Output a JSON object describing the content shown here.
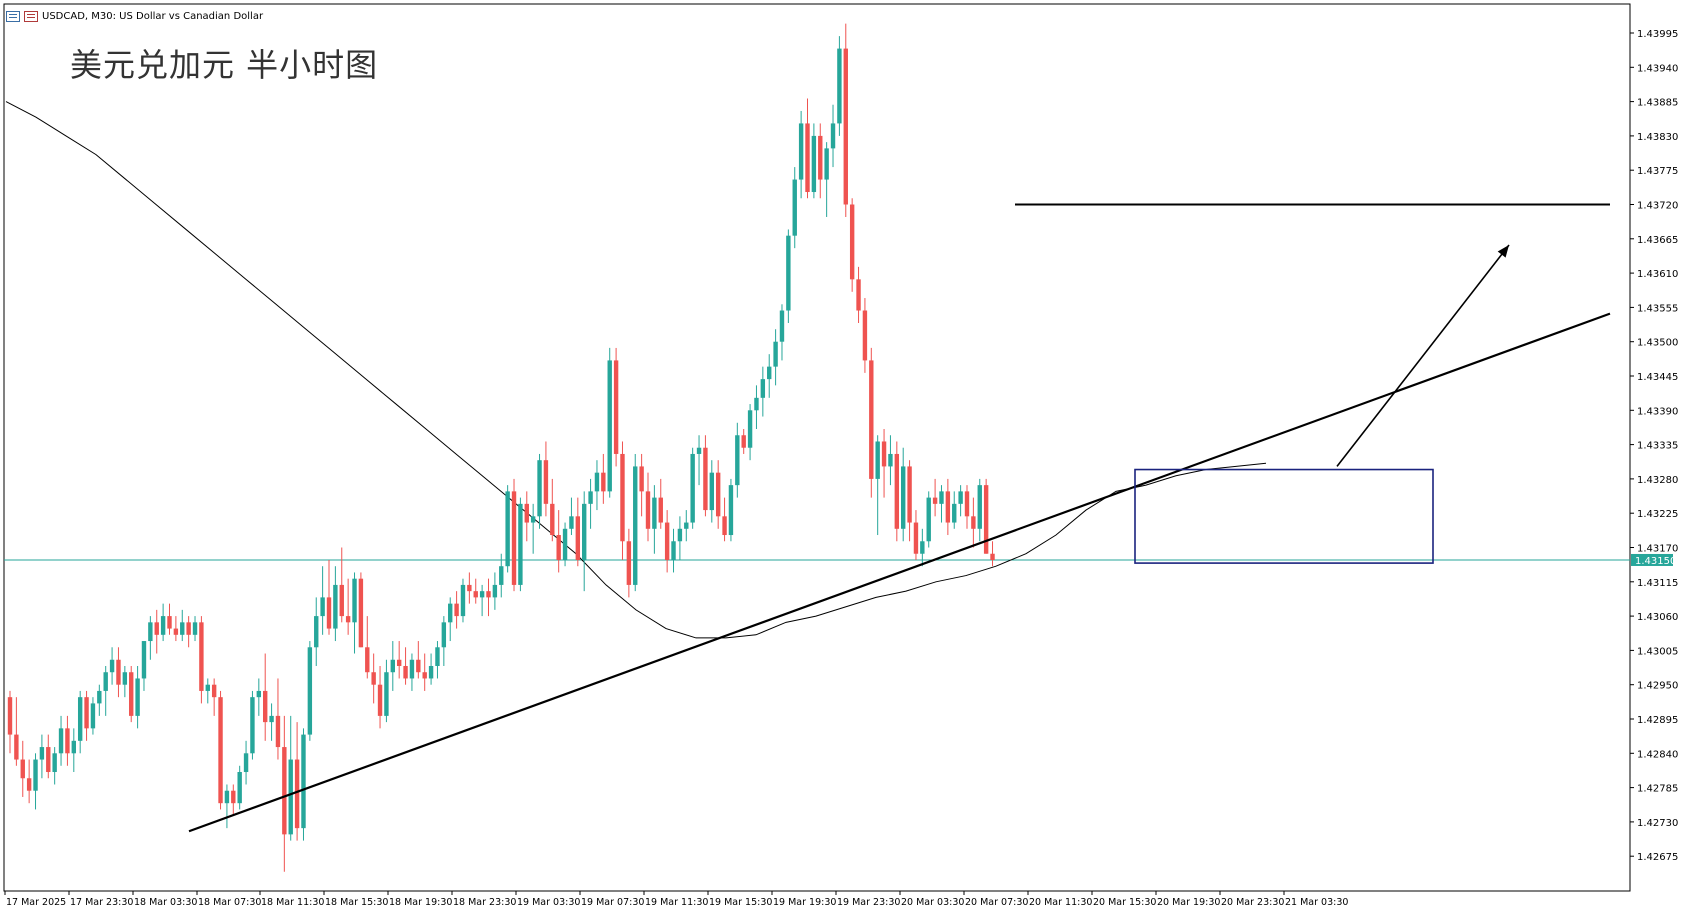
{
  "header": {
    "symbol_info": "USDCAD, M30:  US Dollar vs Canadian Dollar",
    "icon_1": "chart-window-icon",
    "icon_2": "chart-settings-icon"
  },
  "overlay_title": "美元兑加元 半小时图",
  "colors": {
    "bull": "#26a69a",
    "bear": "#ef5350",
    "current_price_line": "#26a69a",
    "box": "#1a237e",
    "line": "#000000"
  },
  "chart_data": {
    "type": "candlestick",
    "title": "",
    "symbol": "USDCAD",
    "timeframe": "M30",
    "current_price": "1.43150",
    "ylim": [
      1.4262,
      1.4405
    ],
    "y_ticks": [
      "1.43995",
      "1.43940",
      "1.43885",
      "1.43830",
      "1.43775",
      "1.43720",
      "1.43665",
      "1.43610",
      "1.43555",
      "1.43500",
      "1.43445",
      "1.43390",
      "1.43335",
      "1.43280",
      "1.43225",
      "1.43170",
      "1.43115",
      "1.43060",
      "1.43005",
      "1.42950",
      "1.42895",
      "1.42840",
      "1.42785",
      "1.42730",
      "1.42675"
    ],
    "x_ticks": [
      "17 Mar 2025",
      "17 Mar 23:30",
      "18 Mar 03:30",
      "18 Mar 07:30",
      "18 Mar 11:30",
      "18 Mar 15:30",
      "18 Mar 19:30",
      "18 Mar 23:30",
      "19 Mar 03:30",
      "19 Mar 07:30",
      "19 Mar 11:30",
      "19 Mar 15:30",
      "19 Mar 19:30",
      "19 Mar 23:30",
      "20 Mar 03:30",
      "20 Mar 07:30",
      "20 Mar 11:30",
      "20 Mar 15:30",
      "20 Mar 19:30",
      "20 Mar 23:30",
      "21 Mar 03:30"
    ],
    "candles": [
      [
        1.4293,
        1.4294,
        1.4284,
        1.4287
      ],
      [
        1.4287,
        1.4293,
        1.4282,
        1.4283
      ],
      [
        1.4283,
        1.4286,
        1.4277,
        1.428
      ],
      [
        1.428,
        1.4283,
        1.4276,
        1.4278
      ],
      [
        1.4278,
        1.4284,
        1.4275,
        1.4283
      ],
      [
        1.4283,
        1.4287,
        1.428,
        1.4285
      ],
      [
        1.4285,
        1.4287,
        1.428,
        1.4281
      ],
      [
        1.4281,
        1.4285,
        1.4279,
        1.4284
      ],
      [
        1.4284,
        1.429,
        1.4282,
        1.4288
      ],
      [
        1.4288,
        1.429,
        1.4282,
        1.4284
      ],
      [
        1.4284,
        1.4288,
        1.4281,
        1.4286
      ],
      [
        1.4286,
        1.4294,
        1.4284,
        1.4293
      ],
      [
        1.4293,
        1.4294,
        1.4286,
        1.4288
      ],
      [
        1.4288,
        1.4293,
        1.4287,
        1.4292
      ],
      [
        1.4292,
        1.4295,
        1.429,
        1.4294
      ],
      [
        1.4294,
        1.4298,
        1.429,
        1.4297
      ],
      [
        1.4297,
        1.4301,
        1.4295,
        1.4299
      ],
      [
        1.4299,
        1.4301,
        1.4293,
        1.4295
      ],
      [
        1.4295,
        1.4298,
        1.4293,
        1.4297
      ],
      [
        1.4297,
        1.4298,
        1.4289,
        1.429
      ],
      [
        1.429,
        1.4298,
        1.4288,
        1.4296
      ],
      [
        1.4296,
        1.4302,
        1.4294,
        1.4302
      ],
      [
        1.4302,
        1.4306,
        1.4299,
        1.4305
      ],
      [
        1.4305,
        1.4307,
        1.43,
        1.4303
      ],
      [
        1.4303,
        1.4308,
        1.4302,
        1.4306
      ],
      [
        1.4306,
        1.4308,
        1.4303,
        1.4304
      ],
      [
        1.4304,
        1.4306,
        1.4302,
        1.4303
      ],
      [
        1.4303,
        1.4307,
        1.4302,
        1.4305
      ],
      [
        1.4305,
        1.4306,
        1.4301,
        1.4303
      ],
      [
        1.4303,
        1.4306,
        1.4302,
        1.4305
      ],
      [
        1.4305,
        1.4306,
        1.4292,
        1.4294
      ],
      [
        1.4294,
        1.4296,
        1.4292,
        1.4295
      ],
      [
        1.4295,
        1.4296,
        1.429,
        1.4293
      ],
      [
        1.4293,
        1.4294,
        1.4275,
        1.4276
      ],
      [
        1.4276,
        1.4279,
        1.4272,
        1.4278
      ],
      [
        1.4278,
        1.4279,
        1.4274,
        1.4276
      ],
      [
        1.4276,
        1.4282,
        1.4275,
        1.4281
      ],
      [
        1.4281,
        1.4286,
        1.4279,
        1.4284
      ],
      [
        1.4284,
        1.4294,
        1.4283,
        1.4293
      ],
      [
        1.4293,
        1.4296,
        1.429,
        1.4294
      ],
      [
        1.4294,
        1.43,
        1.4286,
        1.4289
      ],
      [
        1.4289,
        1.4292,
        1.4286,
        1.429
      ],
      [
        1.429,
        1.4296,
        1.4283,
        1.4285
      ],
      [
        1.4285,
        1.429,
        1.4265,
        1.4271
      ],
      [
        1.4271,
        1.429,
        1.427,
        1.4283
      ],
      [
        1.4283,
        1.4289,
        1.427,
        1.4272
      ],
      [
        1.4272,
        1.4288,
        1.427,
        1.4287
      ],
      [
        1.4287,
        1.4302,
        1.4286,
        1.4301
      ],
      [
        1.4301,
        1.4309,
        1.4298,
        1.4306
      ],
      [
        1.4306,
        1.4314,
        1.4303,
        1.4309
      ],
      [
        1.4309,
        1.4315,
        1.4303,
        1.4304
      ],
      [
        1.4304,
        1.4314,
        1.4302,
        1.4311
      ],
      [
        1.4311,
        1.4317,
        1.4305,
        1.4306
      ],
      [
        1.4306,
        1.4312,
        1.4303,
        1.4305
      ],
      [
        1.4305,
        1.4313,
        1.43,
        1.4312
      ],
      [
        1.4312,
        1.4313,
        1.4301,
        1.4301
      ],
      [
        1.4301,
        1.4306,
        1.4296,
        1.4297
      ],
      [
        1.4297,
        1.43,
        1.4292,
        1.4295
      ],
      [
        1.4295,
        1.4298,
        1.4288,
        1.429
      ],
      [
        1.429,
        1.4299,
        1.4289,
        1.4297
      ],
      [
        1.4297,
        1.4302,
        1.4294,
        1.4299
      ],
      [
        1.4299,
        1.4302,
        1.4296,
        1.4298
      ],
      [
        1.4298,
        1.4301,
        1.4295,
        1.4296
      ],
      [
        1.4296,
        1.43,
        1.4294,
        1.4299
      ],
      [
        1.4299,
        1.4302,
        1.4296,
        1.4297
      ],
      [
        1.4297,
        1.43,
        1.4294,
        1.4296
      ],
      [
        1.4296,
        1.43,
        1.4295,
        1.4298
      ],
      [
        1.4298,
        1.4302,
        1.4296,
        1.4301
      ],
      [
        1.4301,
        1.4306,
        1.4298,
        1.4305
      ],
      [
        1.4305,
        1.4309,
        1.4302,
        1.4308
      ],
      [
        1.4308,
        1.431,
        1.4304,
        1.4306
      ],
      [
        1.4306,
        1.4312,
        1.4305,
        1.4311
      ],
      [
        1.4311,
        1.4313,
        1.4308,
        1.431
      ],
      [
        1.431,
        1.4312,
        1.4308,
        1.4309
      ],
      [
        1.4309,
        1.4311,
        1.4306,
        1.431
      ],
      [
        1.431,
        1.4312,
        1.4306,
        1.4309
      ],
      [
        1.4309,
        1.4313,
        1.4307,
        1.4311
      ],
      [
        1.4311,
        1.4316,
        1.4309,
        1.4314
      ],
      [
        1.4314,
        1.4327,
        1.4313,
        1.4326
      ],
      [
        1.4326,
        1.4328,
        1.431,
        1.4311
      ],
      [
        1.4311,
        1.4325,
        1.431,
        1.4324
      ],
      [
        1.4324,
        1.4326,
        1.4318,
        1.4321
      ],
      [
        1.4321,
        1.4324,
        1.4316,
        1.4322
      ],
      [
        1.4322,
        1.4332,
        1.432,
        1.4331
      ],
      [
        1.4331,
        1.4334,
        1.4322,
        1.4324
      ],
      [
        1.4324,
        1.4328,
        1.4318,
        1.4319
      ],
      [
        1.4319,
        1.4323,
        1.4313,
        1.4315
      ],
      [
        1.4315,
        1.4321,
        1.4314,
        1.432
      ],
      [
        1.432,
        1.4325,
        1.4319,
        1.4322
      ],
      [
        1.4322,
        1.4325,
        1.4314,
        1.4315
      ],
      [
        1.4315,
        1.4326,
        1.431,
        1.4324
      ],
      [
        1.4324,
        1.4328,
        1.432,
        1.4326
      ],
      [
        1.4326,
        1.4331,
        1.4323,
        1.4329
      ],
      [
        1.4329,
        1.4332,
        1.4324,
        1.4326
      ],
      [
        1.4326,
        1.4349,
        1.4325,
        1.4347
      ],
      [
        1.4347,
        1.4349,
        1.433,
        1.4332
      ],
      [
        1.4332,
        1.4334,
        1.4315,
        1.4318
      ],
      [
        1.4318,
        1.432,
        1.4309,
        1.4311
      ],
      [
        1.4311,
        1.4332,
        1.431,
        1.433
      ],
      [
        1.433,
        1.4332,
        1.4322,
        1.4326
      ],
      [
        1.4326,
        1.4329,
        1.4318,
        1.432
      ],
      [
        1.432,
        1.4327,
        1.4316,
        1.4325
      ],
      [
        1.4325,
        1.4328,
        1.432,
        1.4321
      ],
      [
        1.4321,
        1.4323,
        1.4313,
        1.4315
      ],
      [
        1.4315,
        1.432,
        1.4313,
        1.4318
      ],
      [
        1.4318,
        1.4322,
        1.4315,
        1.432
      ],
      [
        1.432,
        1.4323,
        1.4318,
        1.4321
      ],
      [
        1.4321,
        1.4333,
        1.432,
        1.4332
      ],
      [
        1.4332,
        1.4335,
        1.4327,
        1.4333
      ],
      [
        1.4333,
        1.4335,
        1.4322,
        1.4323
      ],
      [
        1.4323,
        1.4331,
        1.4321,
        1.4329
      ],
      [
        1.4329,
        1.4331,
        1.432,
        1.4322
      ],
      [
        1.4322,
        1.4325,
        1.4318,
        1.4319
      ],
      [
        1.4319,
        1.4328,
        1.4318,
        1.4327
      ],
      [
        1.4327,
        1.4337,
        1.4325,
        1.4335
      ],
      [
        1.4335,
        1.4336,
        1.4332,
        1.4333
      ],
      [
        1.4333,
        1.434,
        1.4331,
        1.4339
      ],
      [
        1.4339,
        1.4343,
        1.4336,
        1.4341
      ],
      [
        1.4341,
        1.4346,
        1.4338,
        1.4344
      ],
      [
        1.4344,
        1.4348,
        1.4341,
        1.4346
      ],
      [
        1.4346,
        1.4352,
        1.4343,
        1.435
      ],
      [
        1.435,
        1.4356,
        1.4347,
        1.4355
      ],
      [
        1.4355,
        1.4368,
        1.4353,
        1.4367
      ],
      [
        1.4367,
        1.4378,
        1.4365,
        1.4376
      ],
      [
        1.4376,
        1.4387,
        1.4373,
        1.4385
      ],
      [
        1.4385,
        1.4389,
        1.4373,
        1.4374
      ],
      [
        1.4374,
        1.4385,
        1.4373,
        1.4383
      ],
      [
        1.4383,
        1.4385,
        1.4373,
        1.4376
      ],
      [
        1.4376,
        1.4382,
        1.437,
        1.4381
      ],
      [
        1.4381,
        1.4388,
        1.4378,
        1.4385
      ],
      [
        1.4385,
        1.4399,
        1.4383,
        1.4397
      ],
      [
        1.4397,
        1.4401,
        1.437,
        1.4372
      ],
      [
        1.4372,
        1.4373,
        1.4358,
        1.436
      ],
      [
        1.436,
        1.4362,
        1.4353,
        1.4355
      ],
      [
        1.4355,
        1.4357,
        1.4345,
        1.4347
      ],
      [
        1.4347,
        1.4349,
        1.4325,
        1.4328
      ],
      [
        1.4328,
        1.4335,
        1.4319,
        1.4334
      ],
      [
        1.4334,
        1.4336,
        1.4325,
        1.433
      ],
      [
        1.433,
        1.4335,
        1.4327,
        1.4332
      ],
      [
        1.4332,
        1.4334,
        1.4318,
        1.432
      ],
      [
        1.432,
        1.4333,
        1.4318,
        1.433
      ],
      [
        1.433,
        1.4331,
        1.4318,
        1.4321
      ],
      [
        1.4321,
        1.4323,
        1.4315,
        1.4316
      ],
      [
        1.4316,
        1.432,
        1.4314,
        1.4318
      ],
      [
        1.4318,
        1.4326,
        1.4317,
        1.4325
      ],
      [
        1.4325,
        1.4328,
        1.4322,
        1.4324
      ],
      [
        1.4324,
        1.4327,
        1.4321,
        1.4326
      ],
      [
        1.4326,
        1.4328,
        1.4319,
        1.4321
      ],
      [
        1.4321,
        1.4326,
        1.432,
        1.4324
      ],
      [
        1.4324,
        1.4327,
        1.4322,
        1.4326
      ],
      [
        1.4326,
        1.4327,
        1.432,
        1.4322
      ],
      [
        1.4322,
        1.4325,
        1.4317,
        1.432
      ],
      [
        1.432,
        1.4328,
        1.4318,
        1.4327
      ],
      [
        1.4327,
        1.4328,
        1.4316,
        1.4316
      ],
      [
        1.4316,
        1.4318,
        1.4314,
        1.4315
      ]
    ],
    "moving_average": [
      [
        0,
        1.43885
      ],
      [
        10,
        1.4386
      ],
      [
        20,
        1.4383
      ],
      [
        30,
        1.438
      ],
      [
        40,
        1.4376
      ],
      [
        50,
        1.4372
      ],
      [
        60,
        1.4368
      ],
      [
        70,
        1.4364
      ],
      [
        80,
        1.436
      ],
      [
        90,
        1.4356
      ],
      [
        100,
        1.4352
      ],
      [
        110,
        1.4348
      ],
      [
        120,
        1.4344
      ],
      [
        130,
        1.434
      ],
      [
        140,
        1.4336
      ],
      [
        150,
        1.4332
      ],
      [
        160,
        1.4328
      ],
      [
        170,
        1.4324
      ],
      [
        180,
        1.432
      ],
      [
        190,
        1.4316
      ],
      [
        200,
        1.4311
      ],
      [
        210,
        1.4307
      ],
      [
        220,
        1.4304
      ],
      [
        230,
        1.43025
      ],
      [
        240,
        1.43025
      ],
      [
        250,
        1.4303
      ],
      [
        260,
        1.4305
      ],
      [
        270,
        1.4306
      ],
      [
        280,
        1.43075
      ],
      [
        290,
        1.4309
      ],
      [
        300,
        1.431
      ],
      [
        310,
        1.43115
      ],
      [
        320,
        1.43125
      ],
      [
        330,
        1.4314
      ],
      [
        340,
        1.4316
      ],
      [
        350,
        1.4319
      ],
      [
        360,
        1.4323
      ],
      [
        370,
        1.4326
      ],
      [
        380,
        1.4327
      ],
      [
        390,
        1.43285
      ],
      [
        400,
        1.43295
      ],
      [
        410,
        1.433
      ],
      [
        420,
        1.43305
      ]
    ],
    "annotations": {
      "horizontal_resistance": 1.4372,
      "trendline": {
        "from": [
          -1.0,
          1.42715
        ],
        "to": [
          1.0,
          1.43545
        ]
      },
      "consolidation_box": {
        "price_top": 1.43295,
        "price_bottom": 1.43145
      },
      "arrow": {
        "from_price": 1.433,
        "to_price": 1.43655
      }
    },
    "grid": false,
    "legend": "none"
  }
}
